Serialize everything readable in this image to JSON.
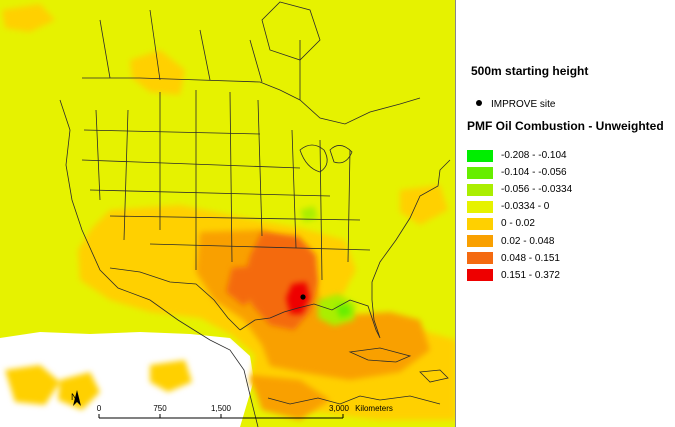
{
  "map": {
    "subtitle": "500m starting height",
    "site_legend_label": "IMPROVE site",
    "legend_title": "PMF Oil Combustion - Unweighted",
    "background_color": "#e6f200",
    "legend": [
      {
        "label": "-0.208 - -0.104",
        "color": "#00ee00"
      },
      {
        "label": "-0.104 - -0.056",
        "color": "#66ee00"
      },
      {
        "label": "-0.056 - -0.0334",
        "color": "#aaee00"
      },
      {
        "label": "-0.0334 - 0",
        "color": "#e6f200"
      },
      {
        "label": "0 - 0.02",
        "color": "#ffd000"
      },
      {
        "label": "0.02 - 0.048",
        "color": "#f9a000"
      },
      {
        "label": "0.048 - 0.151",
        "color": "#f46a10"
      },
      {
        "label": "0.151 - 0.372",
        "color": "#ee0000"
      }
    ],
    "scale_bar": {
      "ticks": [
        "0",
        "750",
        "1,500",
        "3,000"
      ],
      "units": "Kilometers"
    },
    "north_arrow_label": "N"
  }
}
